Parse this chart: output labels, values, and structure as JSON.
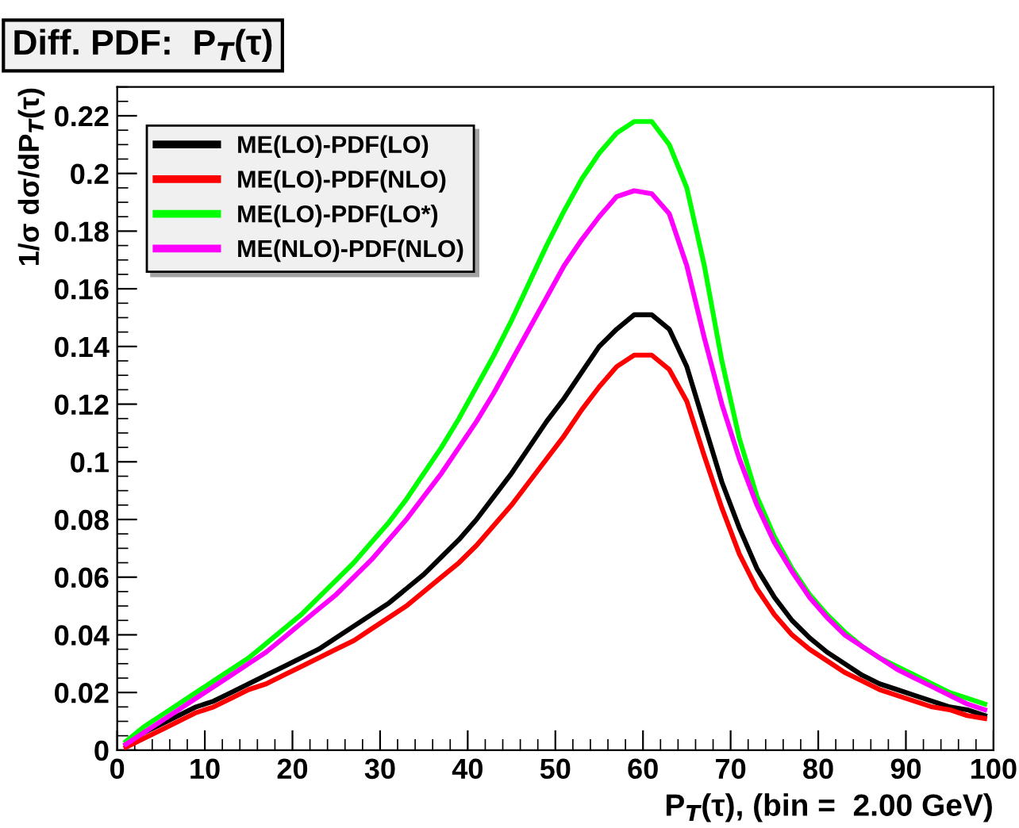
{
  "chart_data": {
    "type": "line",
    "title": "Diff. PDF:  P$_{T}$(τ)",
    "xlabel": "P$_{T}$(τ), (bin =  2.00 GeV)",
    "ylabel": "1/σ dσ/dP$_{T}$(τ)",
    "x": [
      1,
      3,
      5,
      7,
      9,
      11,
      13,
      15,
      17,
      19,
      21,
      23,
      25,
      27,
      29,
      31,
      33,
      35,
      37,
      39,
      41,
      43,
      45,
      47,
      49,
      51,
      53,
      55,
      57,
      59,
      61,
      63,
      65,
      67,
      69,
      71,
      73,
      75,
      77,
      79,
      81,
      83,
      85,
      87,
      89,
      91,
      93,
      95,
      97,
      99
    ],
    "xlim": [
      0,
      100
    ],
    "xticks": [
      0,
      10,
      20,
      30,
      40,
      50,
      60,
      70,
      80,
      90,
      100
    ],
    "ylim": [
      0,
      0.23
    ],
    "yticks": [
      0,
      0.02,
      0.04,
      0.06,
      0.08,
      0.1,
      0.12,
      0.14,
      0.16,
      0.18,
      0.2,
      0.22
    ],
    "grid": false,
    "legend": "top left",
    "marker": "none",
    "line_style": "solid",
    "series": [
      {
        "name": "ME(LO)-PDF(LO)",
        "color": "#000000",
        "values": [
          0.002,
          0.006,
          0.009,
          0.012,
          0.015,
          0.017,
          0.02,
          0.023,
          0.026,
          0.029,
          0.032,
          0.035,
          0.039,
          0.043,
          0.047,
          0.051,
          0.056,
          0.061,
          0.067,
          0.073,
          0.08,
          0.088,
          0.096,
          0.105,
          0.114,
          0.122,
          0.131,
          0.14,
          0.146,
          0.151,
          0.151,
          0.146,
          0.133,
          0.113,
          0.093,
          0.077,
          0.063,
          0.053,
          0.045,
          0.039,
          0.034,
          0.03,
          0.026,
          0.023,
          0.021,
          0.019,
          0.017,
          0.015,
          0.014,
          0.012
        ]
      },
      {
        "name": "ME(LO)-PDF(NLO)",
        "color": "#ff0000",
        "values": [
          0.001,
          0.004,
          0.007,
          0.01,
          0.013,
          0.015,
          0.018,
          0.021,
          0.023,
          0.026,
          0.029,
          0.032,
          0.035,
          0.038,
          0.042,
          0.046,
          0.05,
          0.055,
          0.06,
          0.065,
          0.071,
          0.078,
          0.085,
          0.093,
          0.101,
          0.109,
          0.118,
          0.126,
          0.133,
          0.137,
          0.137,
          0.132,
          0.121,
          0.102,
          0.084,
          0.068,
          0.056,
          0.047,
          0.04,
          0.035,
          0.031,
          0.027,
          0.024,
          0.021,
          0.019,
          0.017,
          0.015,
          0.014,
          0.012,
          0.011
        ]
      },
      {
        "name": "ME(LO)-PDF(LO*)",
        "color": "#00ff00",
        "values": [
          0.003,
          0.008,
          0.012,
          0.016,
          0.02,
          0.024,
          0.028,
          0.032,
          0.037,
          0.042,
          0.047,
          0.053,
          0.059,
          0.065,
          0.072,
          0.079,
          0.087,
          0.096,
          0.105,
          0.115,
          0.126,
          0.137,
          0.149,
          0.162,
          0.175,
          0.187,
          0.198,
          0.207,
          0.214,
          0.218,
          0.218,
          0.21,
          0.195,
          0.168,
          0.135,
          0.108,
          0.088,
          0.074,
          0.063,
          0.054,
          0.047,
          0.041,
          0.036,
          0.032,
          0.029,
          0.026,
          0.023,
          0.02,
          0.018,
          0.016
        ]
      },
      {
        "name": "ME(NLO)-PDF(NLO)",
        "color": "#ff00ff",
        "values": [
          0.002,
          0.006,
          0.01,
          0.014,
          0.018,
          0.022,
          0.026,
          0.03,
          0.034,
          0.039,
          0.044,
          0.049,
          0.054,
          0.06,
          0.066,
          0.073,
          0.08,
          0.088,
          0.096,
          0.105,
          0.114,
          0.124,
          0.135,
          0.146,
          0.157,
          0.168,
          0.177,
          0.185,
          0.192,
          0.194,
          0.193,
          0.186,
          0.168,
          0.143,
          0.12,
          0.101,
          0.085,
          0.072,
          0.062,
          0.053,
          0.046,
          0.04,
          0.036,
          0.032,
          0.028,
          0.025,
          0.022,
          0.019,
          0.016,
          0.014
        ]
      }
    ]
  }
}
